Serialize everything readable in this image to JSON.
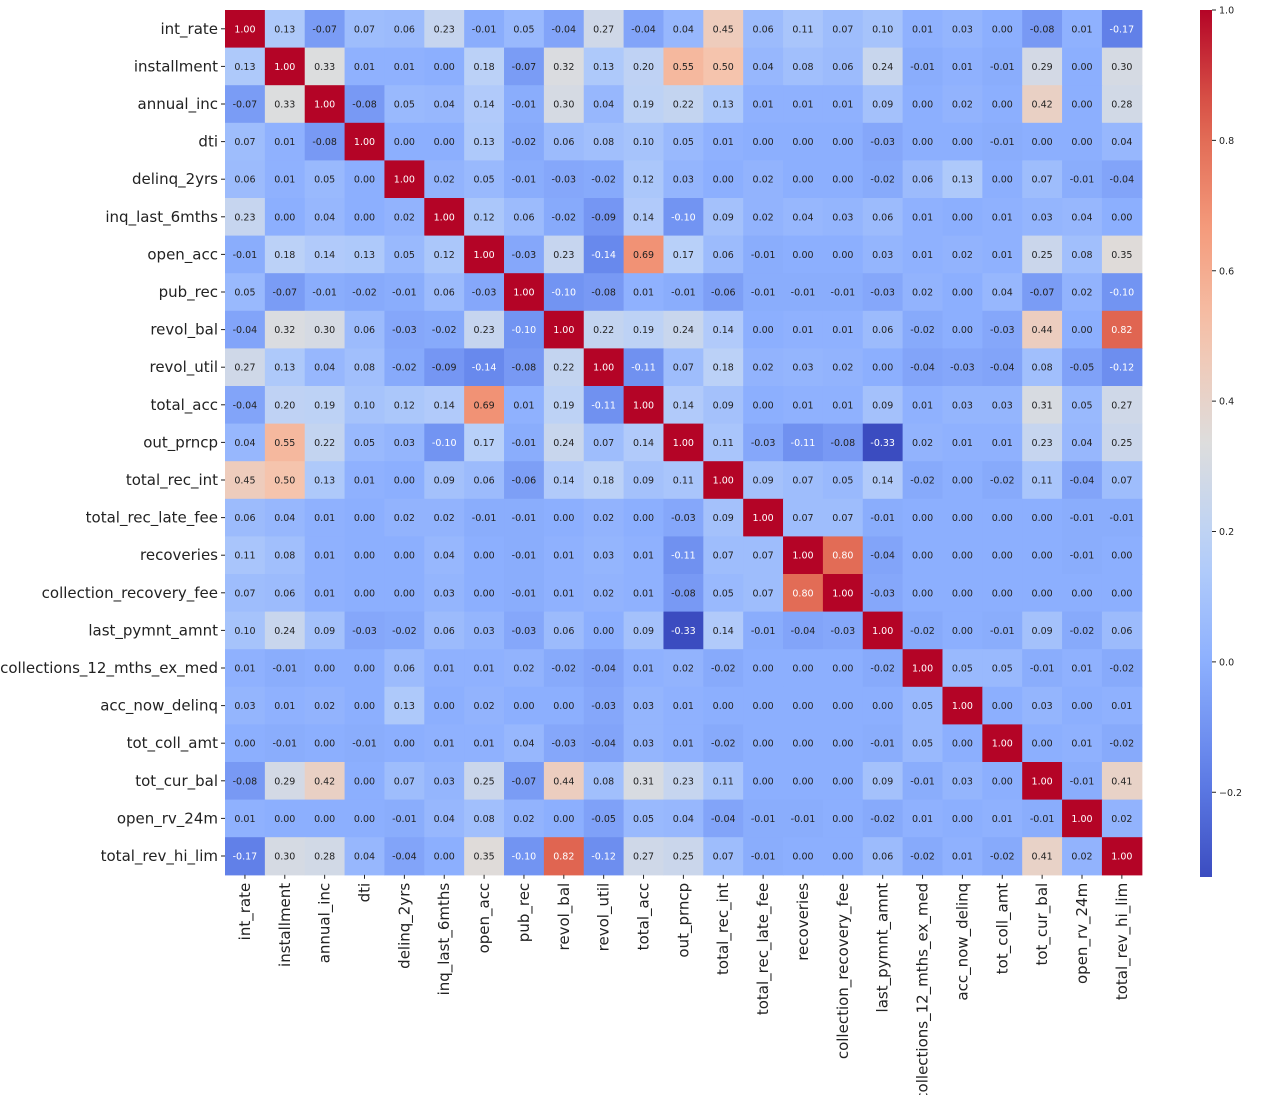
{
  "chart_data": {
    "type": "heatmap",
    "title": "",
    "xlabel": "",
    "ylabel": "",
    "colormap": "coolwarm",
    "vmin": -0.33,
    "vmax": 1.0,
    "value_format": "2 decimals",
    "labels": [
      "int_rate",
      "installment",
      "annual_inc",
      "dti",
      "delinq_2yrs",
      "inq_last_6mths",
      "open_acc",
      "pub_rec",
      "revol_bal",
      "revol_util",
      "total_acc",
      "out_prncp",
      "total_rec_int",
      "total_rec_late_fee",
      "recoveries",
      "collection_recovery_fee",
      "last_pymnt_amnt",
      "collections_12_mths_ex_med",
      "acc_now_delinq",
      "tot_coll_amt",
      "tot_cur_bal",
      "open_rv_24m",
      "total_rev_hi_lim"
    ],
    "matrix": [
      [
        1.0,
        0.13,
        -0.07,
        0.07,
        0.06,
        0.23,
        -0.01,
        0.05,
        -0.04,
        0.27,
        -0.04,
        0.04,
        0.45,
        0.06,
        0.11,
        0.07,
        0.1,
        0.01,
        0.03,
        0.0,
        -0.08,
        0.01,
        -0.17
      ],
      [
        0.13,
        1.0,
        0.33,
        0.01,
        0.01,
        0.0,
        0.18,
        -0.07,
        0.32,
        0.13,
        0.2,
        0.55,
        0.5,
        0.04,
        0.08,
        0.06,
        0.24,
        -0.01,
        0.01,
        -0.01,
        0.29,
        -0.0,
        0.3
      ],
      [
        -0.07,
        0.33,
        1.0,
        -0.08,
        0.05,
        0.04,
        0.14,
        -0.01,
        0.3,
        0.04,
        0.19,
        0.22,
        0.13,
        0.01,
        0.01,
        0.01,
        0.09,
        -0.0,
        0.02,
        0.0,
        0.42,
        0.0,
        0.28
      ],
      [
        0.07,
        0.01,
        -0.08,
        1.0,
        -0.0,
        -0.0,
        0.13,
        -0.02,
        0.06,
        0.08,
        0.1,
        0.05,
        0.01,
        -0.0,
        0.0,
        0.0,
        -0.03,
        -0.0,
        0.0,
        -0.01,
        -0.0,
        0.0,
        0.04
      ],
      [
        0.06,
        0.01,
        0.05,
        -0.0,
        1.0,
        0.02,
        0.05,
        -0.01,
        -0.03,
        -0.02,
        0.12,
        0.03,
        0.0,
        0.02,
        -0.0,
        0.0,
        -0.02,
        0.06,
        0.13,
        0.0,
        0.07,
        -0.01,
        -0.04
      ],
      [
        0.23,
        0.0,
        0.04,
        -0.0,
        0.02,
        1.0,
        0.12,
        0.06,
        -0.02,
        -0.09,
        0.14,
        -0.1,
        0.09,
        0.02,
        0.04,
        0.03,
        0.06,
        0.01,
        -0.0,
        0.01,
        0.03,
        0.04,
        0.0
      ],
      [
        -0.01,
        0.18,
        0.14,
        0.13,
        0.05,
        0.12,
        1.0,
        -0.03,
        0.23,
        -0.14,
        0.69,
        0.17,
        0.06,
        -0.01,
        0.0,
        0.0,
        0.03,
        0.01,
        0.02,
        0.01,
        0.25,
        0.08,
        0.35
      ],
      [
        0.05,
        -0.07,
        -0.01,
        -0.02,
        -0.01,
        0.06,
        -0.03,
        1.0,
        -0.1,
        -0.08,
        0.01,
        -0.01,
        -0.06,
        -0.01,
        -0.01,
        -0.01,
        -0.03,
        0.02,
        0.0,
        0.04,
        -0.07,
        0.02,
        -0.1
      ],
      [
        -0.04,
        0.32,
        0.3,
        0.06,
        -0.03,
        -0.02,
        0.23,
        -0.1,
        1.0,
        0.22,
        0.19,
        0.24,
        0.14,
        0.0,
        0.01,
        0.01,
        0.06,
        -0.02,
        -0.0,
        -0.03,
        0.44,
        -0.0,
        0.82
      ],
      [
        0.27,
        0.13,
        0.04,
        0.08,
        -0.02,
        -0.09,
        -0.14,
        -0.08,
        0.22,
        1.0,
        -0.11,
        0.07,
        0.18,
        0.02,
        0.03,
        0.02,
        -0.0,
        -0.04,
        -0.03,
        -0.04,
        0.08,
        -0.05,
        -0.12
      ],
      [
        -0.04,
        0.2,
        0.19,
        0.1,
        0.12,
        0.14,
        0.69,
        0.01,
        0.19,
        -0.11,
        1.0,
        0.14,
        0.09,
        -0.0,
        0.01,
        0.01,
        0.09,
        0.01,
        0.03,
        0.03,
        0.31,
        0.05,
        0.27
      ],
      [
        0.04,
        0.55,
        0.22,
        0.05,
        0.03,
        -0.1,
        0.17,
        -0.01,
        0.24,
        0.07,
        0.14,
        1.0,
        0.11,
        -0.03,
        -0.11,
        -0.08,
        -0.33,
        0.02,
        0.01,
        0.01,
        0.23,
        0.04,
        0.25
      ],
      [
        0.45,
        0.5,
        0.13,
        0.01,
        0.0,
        0.09,
        0.06,
        -0.06,
        0.14,
        0.18,
        0.09,
        0.11,
        1.0,
        0.09,
        0.07,
        0.05,
        0.14,
        -0.02,
        0.0,
        -0.02,
        0.11,
        -0.04,
        0.07
      ],
      [
        0.06,
        0.04,
        0.01,
        -0.0,
        0.02,
        0.02,
        -0.01,
        -0.01,
        0.0,
        0.02,
        -0.0,
        -0.03,
        0.09,
        1.0,
        0.07,
        0.07,
        -0.01,
        -0.0,
        0.0,
        -0.0,
        0.0,
        -0.01,
        -0.01
      ],
      [
        0.11,
        0.08,
        0.01,
        0.0,
        -0.0,
        0.04,
        0.0,
        -0.01,
        0.01,
        0.03,
        0.01,
        -0.11,
        0.07,
        0.07,
        1.0,
        0.8,
        -0.04,
        -0.0,
        0.0,
        -0.0,
        -0.0,
        -0.01,
        -0.0
      ],
      [
        0.07,
        0.06,
        0.01,
        0.0,
        0.0,
        0.03,
        0.0,
        -0.01,
        0.01,
        0.02,
        0.01,
        -0.08,
        0.05,
        0.07,
        0.8,
        1.0,
        -0.03,
        -0.0,
        -0.0,
        -0.0,
        0.0,
        -0.0,
        -0.0
      ],
      [
        0.1,
        0.24,
        0.09,
        -0.03,
        -0.02,
        0.06,
        0.03,
        -0.03,
        0.06,
        -0.0,
        0.09,
        -0.33,
        0.14,
        -0.01,
        -0.04,
        -0.03,
        1.0,
        -0.02,
        -0.0,
        -0.01,
        0.09,
        -0.02,
        0.06
      ],
      [
        0.01,
        -0.01,
        -0.0,
        -0.0,
        0.06,
        0.01,
        0.01,
        0.02,
        -0.02,
        -0.04,
        0.01,
        0.02,
        -0.02,
        -0.0,
        -0.0,
        -0.0,
        -0.02,
        1.0,
        0.05,
        0.05,
        -0.01,
        0.01,
        -0.02
      ],
      [
        0.03,
        0.01,
        0.02,
        0.0,
        0.13,
        -0.0,
        0.02,
        0.0,
        -0.0,
        -0.03,
        0.03,
        0.01,
        0.0,
        0.0,
        0.0,
        -0.0,
        -0.0,
        0.05,
        1.0,
        0.0,
        0.03,
        -0.0,
        0.01
      ],
      [
        0.0,
        -0.01,
        0.0,
        -0.01,
        0.0,
        0.01,
        0.01,
        0.04,
        -0.03,
        -0.04,
        0.03,
        0.01,
        -0.02,
        -0.0,
        -0.0,
        -0.0,
        -0.01,
        0.05,
        0.0,
        1.0,
        -0.0,
        0.01,
        -0.02
      ],
      [
        -0.08,
        0.29,
        0.42,
        -0.0,
        0.07,
        0.03,
        0.25,
        -0.07,
        0.44,
        0.08,
        0.31,
        0.23,
        0.11,
        0.0,
        -0.0,
        0.0,
        0.09,
        -0.01,
        0.03,
        -0.0,
        1.0,
        -0.01,
        0.41
      ],
      [
        0.01,
        -0.0,
        0.0,
        0.0,
        -0.01,
        0.04,
        0.08,
        0.02,
        -0.0,
        -0.05,
        0.05,
        0.04,
        -0.04,
        -0.01,
        -0.01,
        -0.0,
        -0.02,
        0.01,
        -0.0,
        0.01,
        -0.01,
        1.0,
        0.02
      ],
      [
        -0.17,
        0.3,
        0.28,
        0.04,
        -0.04,
        0.0,
        0.35,
        -0.1,
        0.82,
        -0.12,
        0.27,
        0.25,
        0.07,
        -0.01,
        -0.0,
        -0.0,
        0.06,
        -0.02,
        0.01,
        -0.02,
        0.41,
        0.02,
        1.0
      ]
    ],
    "colorbar": {
      "ticks": [
        1.0,
        0.8,
        0.6,
        0.4,
        0.2,
        0.0,
        -0.2
      ],
      "tick_labels": [
        "1.0",
        "0.8",
        "0.6",
        "0.4",
        "0.2",
        "0.0",
        "−0.2"
      ]
    }
  }
}
